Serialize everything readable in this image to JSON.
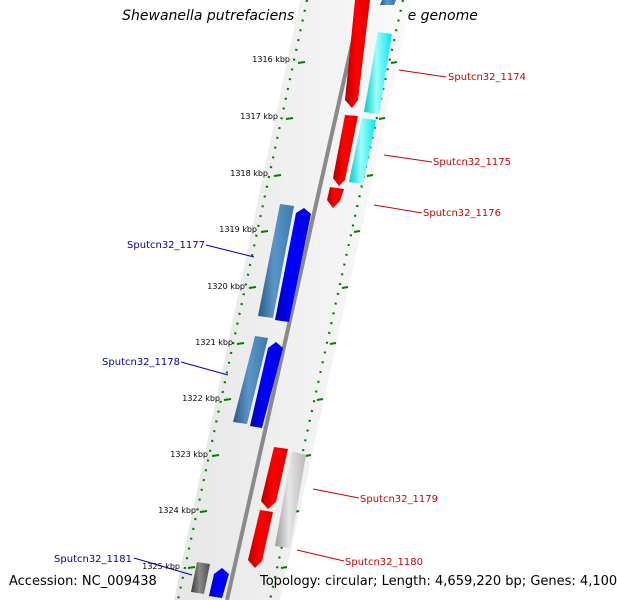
{
  "title": "Shewanella putrefaciens CN-32, complete genome",
  "footer": {
    "accession_label": "Accession:",
    "accession": "NC_009438",
    "topology_label": "Topology:",
    "topology": "circular",
    "length_label": "Length:",
    "length": "4,659,220 bp",
    "genes_label": "Genes:",
    "genes": "4,100"
  },
  "ticks": [
    "1316 kbp",
    "1317 kbp",
    "1318 kbp",
    "1319 kbp",
    "1320 kbp",
    "1321 kbp",
    "1322 kbp",
    "1323 kbp",
    "1324 kbp",
    "1325 kbp"
  ],
  "gene_labels": {
    "g1174": "Sputcn32_1174",
    "g1175": "Sputcn32_1175",
    "g1176": "Sputcn32_1176",
    "g1177": "Sputcn32_1177",
    "g1178": "Sputcn32_1178",
    "g1179": "Sputcn32_1179",
    "g1180": "Sputcn32_1180",
    "g1181": "Sputcn32_1181"
  },
  "colors": {
    "forward_label": "#cc0000",
    "reverse_label": "#0000aa",
    "tick": "#008000",
    "backbone": "#8a8a8a",
    "cds_red": "#ff0000",
    "cds_blue": "#0000ff",
    "cds_steel": "#3c78aa",
    "cds_cyan": "#00ffff",
    "cds_grey": "#bdbdbd",
    "cds_dark": "#555555"
  }
}
